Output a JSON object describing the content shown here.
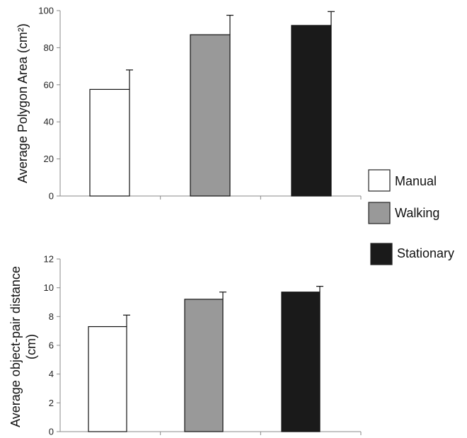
{
  "legend": {
    "items": [
      {
        "label": "Manual",
        "color": "#ffffff"
      },
      {
        "label": "Walking",
        "color": "#999999"
      },
      {
        "label": "Stationary",
        "color": "#1a1a1a"
      }
    ]
  },
  "chart_data": [
    {
      "type": "bar",
      "categories": [
        "Manual",
        "Walking",
        "Stationary"
      ],
      "values": [
        57.5,
        87,
        92
      ],
      "errors": [
        10.5,
        10.5,
        7.5
      ],
      "ylabel_line1": "Average Polygon Area (cm²)",
      "ylabel_line2": "",
      "ylim": [
        0,
        100
      ],
      "yticks": [
        0,
        20,
        40,
        60,
        80,
        100
      ],
      "grid": false
    },
    {
      "type": "bar",
      "categories": [
        "Manual",
        "Walking",
        "Stationary"
      ],
      "values": [
        7.3,
        9.2,
        9.7
      ],
      "errors": [
        0.8,
        0.5,
        0.4
      ],
      "ylabel_line1": "Average object-pair distance",
      "ylabel_line2": "(cm)",
      "ylim": [
        0,
        12
      ],
      "yticks": [
        0,
        2,
        4,
        6,
        8,
        10,
        12
      ],
      "grid": false
    }
  ]
}
